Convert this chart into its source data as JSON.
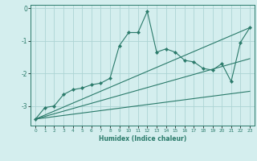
{
  "xlabel": "Humidex (Indice chaleur)",
  "background_color": "#d4eeee",
  "grid_color": "#add4d4",
  "line_color": "#2a7a6a",
  "xlim": [
    -0.5,
    23.5
  ],
  "ylim": [
    -3.6,
    0.1
  ],
  "yticks": [
    0,
    -1,
    -2,
    -3
  ],
  "xticks": [
    0,
    1,
    2,
    3,
    4,
    5,
    6,
    7,
    8,
    9,
    10,
    11,
    12,
    13,
    14,
    15,
    16,
    17,
    18,
    19,
    20,
    21,
    22,
    23
  ],
  "series1_x": [
    0,
    1,
    2,
    3,
    4,
    5,
    6,
    7,
    8,
    9,
    10,
    11,
    12,
    13,
    14,
    15,
    16,
    17,
    18,
    19,
    20,
    21,
    22,
    23
  ],
  "series1_y": [
    -3.4,
    -3.05,
    -3.0,
    -2.65,
    -2.5,
    -2.45,
    -2.35,
    -2.3,
    -2.15,
    -1.15,
    -0.75,
    -0.75,
    -0.1,
    -1.35,
    -1.25,
    -1.35,
    -1.6,
    -1.65,
    -1.85,
    -1.9,
    -1.7,
    -2.25,
    -1.05,
    -0.6
  ],
  "series2_x": [
    0,
    23
  ],
  "series2_y": [
    -3.4,
    -0.6
  ],
  "series3_x": [
    0,
    23
  ],
  "series3_y": [
    -3.4,
    -2.55
  ],
  "series4_x": [
    0,
    23
  ],
  "series4_y": [
    -3.4,
    -1.55
  ]
}
